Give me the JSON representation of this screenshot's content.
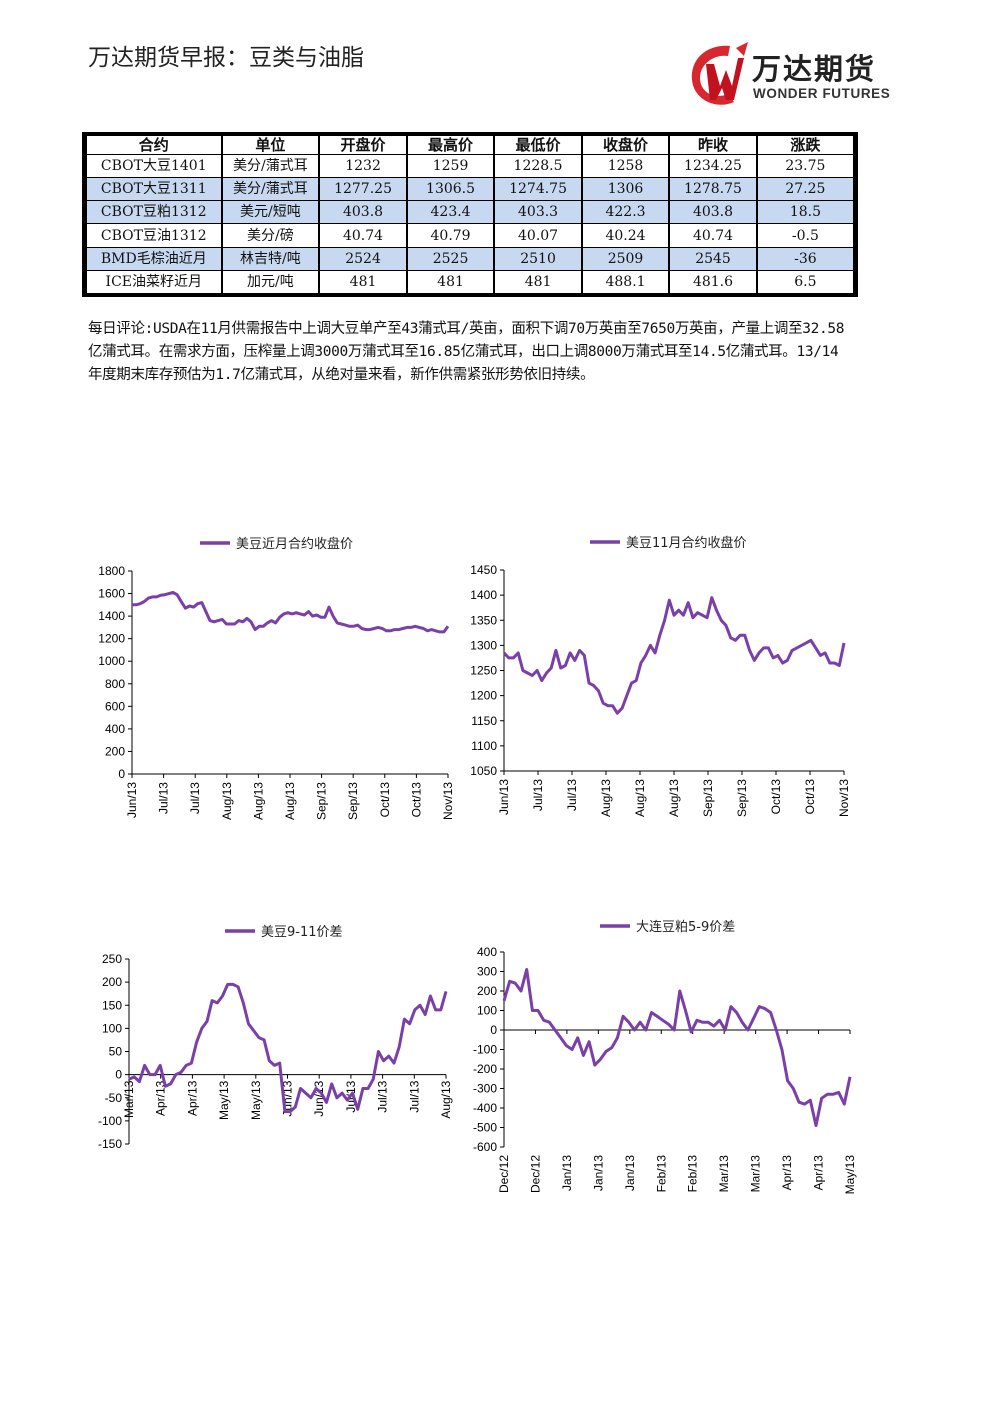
{
  "header": {
    "title": "万达期货早报：豆类与油脂",
    "logo_cn": "万达期货",
    "logo_en": "WONDER FUTURES"
  },
  "table": {
    "headers": [
      "合约",
      "单位",
      "开盘价",
      "最高价",
      "最低价",
      "收盘价",
      "昨收",
      "涨跌"
    ],
    "rows": [
      [
        "CBOT大豆1401",
        "美分/蒲式耳",
        "1232",
        "1259",
        "1228.5",
        "1258",
        "1234.25",
        "23.75"
      ],
      [
        "CBOT大豆1311",
        "美分/蒲式耳",
        "1277.25",
        "1306.5",
        "1274.75",
        "1306",
        "1278.75",
        "27.25"
      ],
      [
        "CBOT豆粕1312",
        "美元/短吨",
        "403.8",
        "423.4",
        "403.3",
        "422.3",
        "403.8",
        "18.5"
      ],
      [
        "CBOT豆油1312",
        "美分/磅",
        "40.74",
        "40.79",
        "40.07",
        "40.24",
        "40.74",
        "-0.5"
      ],
      [
        "BMD毛棕油近月",
        "林吉特/吨",
        "2524",
        "2525",
        "2510",
        "2509",
        "2545",
        "-36"
      ],
      [
        "ICE油菜籽近月",
        "加元/吨",
        "481",
        "481",
        "481",
        "488.1",
        "481.6",
        "6.5"
      ]
    ]
  },
  "comment": "每日评论:USDA在11月供需报告中上调大豆单产至43蒲式耳/英亩，面积下调70万英亩至7650万英亩，产量上调至32.58亿蒲式耳。在需求方面，压榨量上调3000万蒲式耳至16.85亿蒲式耳，出口上调8000万蒲式耳至14.5亿蒲式耳。13/14年度期末库存预估为1.7亿蒲式耳，从绝对量来看，新作供需紧张形势依旧持续。",
  "colors": {
    "line": "#7b3fa8",
    "row_highlight": "#c7d9f0"
  },
  "chart_data": [
    {
      "type": "line",
      "legend": "美豆近月合约收盘价",
      "ylim": [
        0,
        1800
      ],
      "yticks": [
        "0",
        "200",
        "400",
        "600",
        "800",
        "1000",
        "1200",
        "1400",
        "1600",
        "1800"
      ],
      "xticks": [
        "Jun/13",
        "Jul/13",
        "Jul/13",
        "Aug/13",
        "Aug/13",
        "Aug/13",
        "Sep/13",
        "Sep/13",
        "Oct/13",
        "Oct/13",
        "Nov/13"
      ],
      "values": [
        1500,
        1500,
        1510,
        1530,
        1560,
        1570,
        1570,
        1585,
        1590,
        1600,
        1610,
        1590,
        1530,
        1470,
        1490,
        1480,
        1510,
        1520,
        1440,
        1360,
        1350,
        1360,
        1370,
        1330,
        1330,
        1330,
        1360,
        1350,
        1380,
        1350,
        1280,
        1310,
        1310,
        1340,
        1360,
        1340,
        1390,
        1420,
        1430,
        1420,
        1430,
        1420,
        1410,
        1440,
        1400,
        1410,
        1390,
        1390,
        1480,
        1400,
        1340,
        1330,
        1320,
        1310,
        1310,
        1320,
        1290,
        1280,
        1280,
        1290,
        1300,
        1290,
        1270,
        1270,
        1280,
        1280,
        1290,
        1300,
        1300,
        1310,
        1300,
        1290,
        1270,
        1280,
        1270,
        1260,
        1260,
        1310
      ]
    },
    {
      "type": "line",
      "legend": "美豆11月合约收盘价",
      "ylim": [
        1050,
        1450
      ],
      "yticks": [
        "1050",
        "1100",
        "1150",
        "1200",
        "1250",
        "1300",
        "1350",
        "1400",
        "1450"
      ],
      "xticks": [
        "Jun/13",
        "Jul/13",
        "Jul/13",
        "Aug/13",
        "Aug/13",
        "Aug/13",
        "Sep/13",
        "Sep/13",
        "Oct/13",
        "Oct/13",
        "Nov/13"
      ],
      "values": [
        1285,
        1275,
        1275,
        1285,
        1250,
        1245,
        1240,
        1250,
        1230,
        1245,
        1255,
        1290,
        1255,
        1260,
        1285,
        1270,
        1290,
        1280,
        1225,
        1220,
        1210,
        1185,
        1180,
        1180,
        1165,
        1175,
        1200,
        1225,
        1230,
        1265,
        1280,
        1300,
        1285,
        1320,
        1350,
        1390,
        1360,
        1370,
        1360,
        1385,
        1355,
        1365,
        1360,
        1355,
        1395,
        1370,
        1350,
        1340,
        1315,
        1310,
        1320,
        1320,
        1290,
        1270,
        1285,
        1295,
        1295,
        1275,
        1280,
        1265,
        1270,
        1290,
        1295,
        1300,
        1305,
        1310,
        1295,
        1280,
        1285,
        1265,
        1265,
        1260,
        1305
      ]
    },
    {
      "type": "line",
      "legend": "美豆9-11价差",
      "ylim": [
        -150,
        250
      ],
      "yticks": [
        "-150",
        "-100",
        "-50",
        "0",
        "50",
        "100",
        "150",
        "200",
        "250"
      ],
      "xticks": [
        "Mar/13",
        "Apr/13",
        "Apr/13",
        "May/13",
        "May/13",
        "Jun/13",
        "Jun/13",
        "Jul/13",
        "Jul/13",
        "Jul/13",
        "Aug/13"
      ],
      "values": [
        -10,
        -5,
        -15,
        20,
        0,
        0,
        20,
        -25,
        -20,
        0,
        5,
        20,
        25,
        70,
        100,
        115,
        160,
        155,
        170,
        195,
        195,
        190,
        155,
        110,
        95,
        80,
        75,
        30,
        20,
        25,
        -80,
        -80,
        -70,
        -30,
        -40,
        -50,
        -30,
        -40,
        -60,
        -20,
        -50,
        -40,
        -55,
        -40,
        -75,
        -30,
        -30,
        -10,
        50,
        30,
        40,
        25,
        60,
        120,
        110,
        140,
        150,
        130,
        170,
        140,
        140,
        180
      ]
    },
    {
      "type": "line",
      "legend": "大连豆粕5-9价差",
      "ylim": [
        -600,
        400
      ],
      "yticks": [
        "-600",
        "-500",
        "-400",
        "-300",
        "-200",
        "-100",
        "0",
        "100",
        "200",
        "300",
        "400"
      ],
      "xticks": [
        "Dec/12",
        "Dec/12",
        "Jan/13",
        "Jan/13",
        "Jan/13",
        "Feb/13",
        "Feb/13",
        "Mar/13",
        "Mar/13",
        "Apr/13",
        "Apr/13",
        "May/13"
      ],
      "values": [
        150,
        250,
        240,
        200,
        310,
        100,
        100,
        50,
        40,
        0,
        -40,
        -80,
        -100,
        -40,
        -130,
        -60,
        -180,
        -150,
        -110,
        -90,
        -40,
        70,
        40,
        0,
        40,
        0,
        90,
        70,
        50,
        30,
        0,
        200,
        100,
        -10,
        50,
        40,
        40,
        20,
        50,
        0,
        120,
        90,
        40,
        0,
        60,
        120,
        110,
        90,
        0,
        -100,
        -260,
        -300,
        -370,
        -380,
        -360,
        -490,
        -350,
        -330,
        -330,
        -320,
        -380,
        -240
      ]
    }
  ]
}
